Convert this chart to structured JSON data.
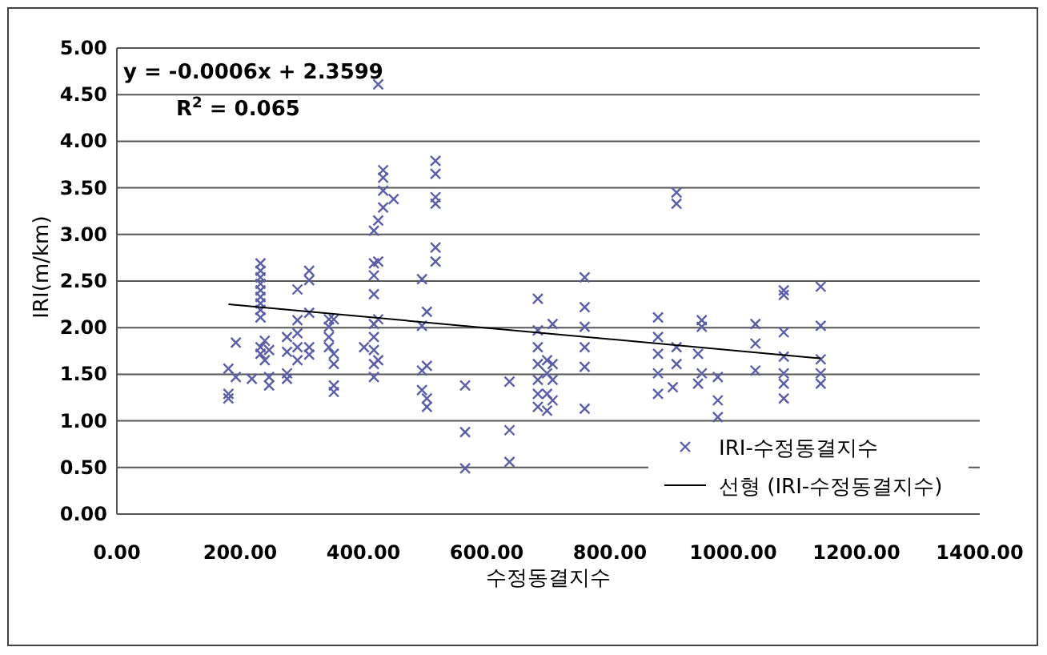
{
  "chart_data": {
    "type": "scatter",
    "xlabel": "수정동결지수",
    "ylabel": "IRI(m/km)",
    "annotations": [
      "y = -0.0006x + 2.3599",
      "R$^{2}$ = 0.065"
    ],
    "xlim": [
      0,
      1400
    ],
    "ylim": [
      0,
      5
    ],
    "xticks": [
      {
        "value": 0,
        "label": "0.00"
      },
      {
        "value": 200,
        "label": "200.00"
      },
      {
        "value": 400,
        "label": "400.00"
      },
      {
        "value": 600,
        "label": "600.00"
      },
      {
        "value": 800,
        "label": "800.00"
      },
      {
        "value": 1000,
        "label": "1000.00"
      },
      {
        "value": 1200,
        "label": "1200.00"
      },
      {
        "value": 1400,
        "label": "1400.00"
      }
    ],
    "yticks": [
      {
        "value": 0,
        "label": "0.00"
      },
      {
        "value": 0.5,
        "label": "0.50"
      },
      {
        "value": 1,
        "label": "1.00"
      },
      {
        "value": 1.5,
        "label": "1.50"
      },
      {
        "value": 2,
        "label": "2.00"
      },
      {
        "value": 2.5,
        "label": "2.50"
      },
      {
        "value": 3,
        "label": "3.00"
      },
      {
        "value": 3.5,
        "label": "3.50"
      },
      {
        "value": 4,
        "label": "4.00"
      },
      {
        "value": 4.5,
        "label": "4.50"
      },
      {
        "value": 5,
        "label": "5.00"
      }
    ],
    "grid": "y",
    "legend": "bottom right",
    "series": [
      {
        "name": "IRI-수정동결지수",
        "marker": "cross",
        "color": "#5a5ea8",
        "x": [
          181,
          181,
          181,
          193,
          193,
          219,
          233,
          233,
          233,
          233,
          233,
          233,
          233,
          233,
          233,
          233,
          233,
          240,
          240,
          247,
          247,
          247,
          276,
          276,
          276,
          276,
          293,
          293,
          293,
          293,
          293,
          312,
          312,
          312,
          312,
          312,
          344,
          344,
          344,
          344,
          352,
          352,
          352,
          352,
          352,
          401,
          417,
          417,
          417,
          417,
          417,
          417,
          417,
          417,
          417,
          424,
          424,
          424,
          424,
          424,
          432,
          432,
          432,
          432,
          449,
          495,
          495,
          495,
          495,
          503,
          503,
          503,
          503,
          517,
          517,
          517,
          517,
          517,
          517,
          565,
          565,
          565,
          637,
          637,
          637,
          683,
          683,
          683,
          683,
          683,
          683,
          683,
          698,
          698,
          698,
          698,
          707,
          707,
          707,
          707,
          759,
          759,
          759,
          759,
          759,
          759,
          878,
          878,
          878,
          878,
          878,
          902,
          908,
          908,
          908,
          908,
          943,
          943,
          949,
          949,
          949,
          975,
          975,
          975,
          1036,
          1036,
          1036,
          1082,
          1082,
          1082,
          1082,
          1082,
          1082,
          1082,
          1142,
          1142,
          1142,
          1142,
          1142
        ],
        "values": [
          1.56,
          1.29,
          1.24,
          1.84,
          1.47,
          1.45,
          2.69,
          2.61,
          2.54,
          2.47,
          2.4,
          2.33,
          2.26,
          2.19,
          2.11,
          1.79,
          1.72,
          1.86,
          1.65,
          1.76,
          1.47,
          1.38,
          1.9,
          1.74,
          1.51,
          1.45,
          2.41,
          2.08,
          1.94,
          1.79,
          1.65,
          2.61,
          2.51,
          2.16,
          1.79,
          1.71,
          2.09,
          2.01,
          1.9,
          1.79,
          2.09,
          1.72,
          1.61,
          1.38,
          1.31,
          1.79,
          3.04,
          2.69,
          2.56,
          2.36,
          2.04,
          1.9,
          1.76,
          1.61,
          1.47,
          4.61,
          3.15,
          2.71,
          2.09,
          1.65,
          3.69,
          3.61,
          3.47,
          3.29,
          3.38,
          2.52,
          2.02,
          1.54,
          1.33,
          2.17,
          1.59,
          1.24,
          1.15,
          3.79,
          3.65,
          3.4,
          3.33,
          2.86,
          2.71,
          1.38,
          0.88,
          0.49,
          1.42,
          0.9,
          0.56,
          2.31,
          1.97,
          1.79,
          1.61,
          1.44,
          1.29,
          1.15,
          1.65,
          1.51,
          1.29,
          1.11,
          2.04,
          1.61,
          1.44,
          1.22,
          2.54,
          2.22,
          2.01,
          1.79,
          1.58,
          1.13,
          2.11,
          1.9,
          1.72,
          1.51,
          1.29,
          1.36,
          3.45,
          3.33,
          1.79,
          1.61,
          1.72,
          1.4,
          2.08,
          2.01,
          1.51,
          1.47,
          1.22,
          1.04,
          2.04,
          1.83,
          1.54,
          2.4,
          2.35,
          1.95,
          1.69,
          1.51,
          1.4,
          1.24,
          2.44,
          2.02,
          1.66,
          1.51,
          1.4
        ]
      },
      {
        "name": "선형 (IRI-수정동결지수)",
        "type": "line",
        "marker": "none",
        "color": "#000000",
        "x": [
          181,
          1142
        ],
        "values": [
          2.25,
          1.67
        ]
      }
    ]
  }
}
